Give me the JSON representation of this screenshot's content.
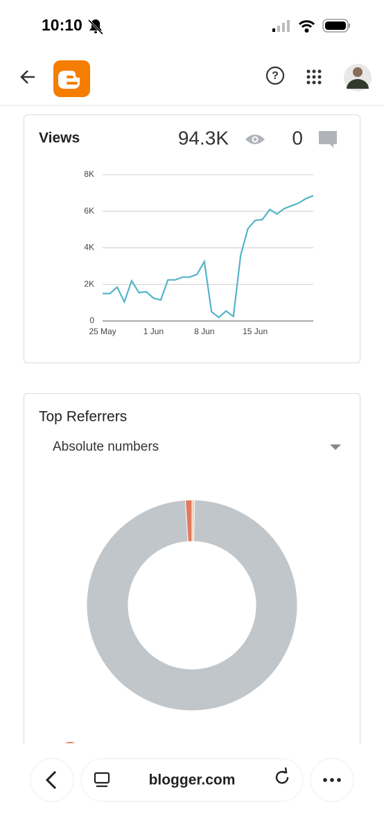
{
  "status_bar": {
    "time": "10:10"
  },
  "views_card": {
    "total": "94.3K",
    "comments": "0"
  },
  "referrers_card": {
    "mode": "Absolute numbers"
  },
  "bottom_bar": {
    "url": "blogger.com"
  },
  "chart_data": [
    {
      "type": "line",
      "title": "Views",
      "categories": [
        "25 May",
        null,
        null,
        null,
        null,
        null,
        null,
        "1 Jun",
        null,
        null,
        null,
        null,
        null,
        null,
        "8 Jun",
        null,
        null,
        null,
        null,
        null,
        null,
        "15 Jun",
        null,
        null,
        null,
        null,
        null,
        null,
        null,
        null
      ],
      "values": [
        1500,
        1500,
        1850,
        1050,
        2200,
        1550,
        1600,
        1250,
        1150,
        2250,
        2250,
        2400,
        2400,
        2550,
        3250,
        500,
        200,
        550,
        250,
        3600,
        5050,
        5500,
        5550,
        6100,
        5850,
        6150,
        6300,
        6450,
        6700,
        6850
      ],
      "color": "#52b4c8",
      "ylim": [
        0,
        8000
      ],
      "yticks": [
        0,
        {
          "value": 2000,
          "label": "2K"
        },
        {
          "value": 4000,
          "label": "4K"
        },
        {
          "value": 6000,
          "label": "6K"
        },
        {
          "value": 8000,
          "label": "8K"
        }
      ],
      "grid": true
    },
    {
      "type": "pie",
      "title": "Top Referrers",
      "values": [
        0.4,
        98.6,
        1.0
      ],
      "colors": [
        "#f3c9a8",
        "#c1c6ca",
        "#e07a5f"
      ]
    }
  ]
}
